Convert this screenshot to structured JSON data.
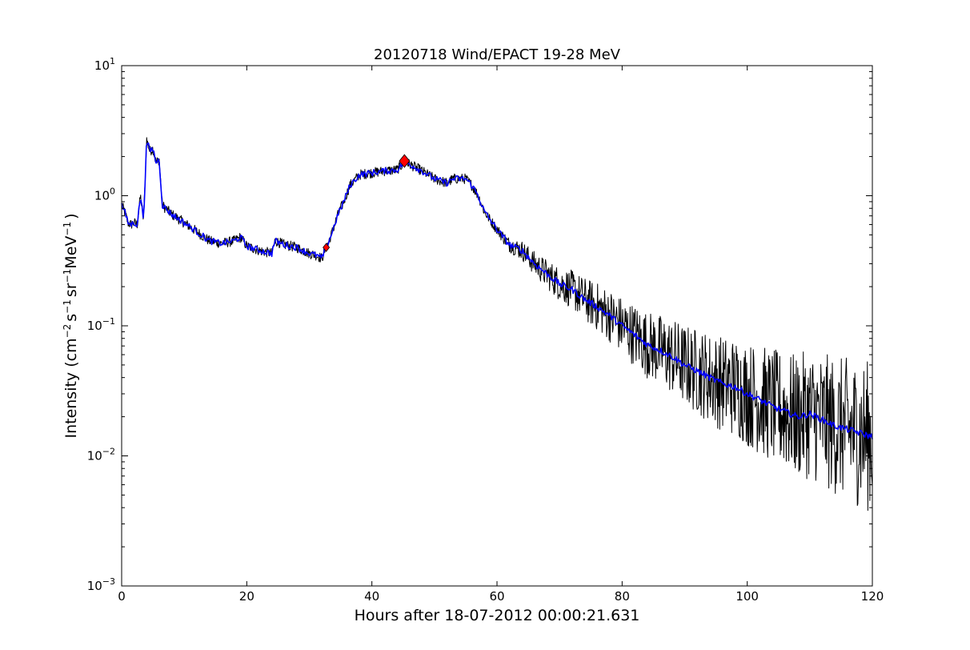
{
  "chart_data": {
    "type": "line",
    "title": "20120718 Wind/EPACT 19-28 MeV",
    "xlabel": "Hours after 18-07-2012 00:00:21.631",
    "ylabel": {
      "prefix": "Intensity (cm",
      "exp1": "−2",
      "s": "s",
      "exp2": "−1",
      "sr": "sr",
      "exp3": "−1",
      "mev": "MeV",
      "exp4": "−1",
      "suffix": ")"
    },
    "xlim": [
      0,
      120
    ],
    "ylim": [
      0.001,
      10
    ],
    "yscale": "log",
    "grid": false,
    "x_ticks": [
      "0",
      "20",
      "40",
      "60",
      "80",
      "100",
      "120"
    ],
    "y_ticks": [
      {
        "base": "10",
        "exp": "−3",
        "value": 0.001
      },
      {
        "base": "10",
        "exp": "−2",
        "value": 0.01
      },
      {
        "base": "10",
        "exp": "−1",
        "value": 0.1
      },
      {
        "base": "10",
        "exp": "0",
        "value": 1
      },
      {
        "base": "10",
        "exp": "1",
        "value": 10
      }
    ],
    "series": [
      {
        "color": "#000000",
        "style": "raw",
        "x": [
          0,
          0.5,
          1,
          1.5,
          2,
          2.5,
          3,
          3.5,
          4,
          4.5,
          5,
          5.5,
          6,
          6.5,
          7,
          8,
          10,
          12,
          14,
          16,
          18,
          19,
          20,
          22,
          24,
          24.5,
          26,
          28,
          30,
          31,
          32,
          32.7,
          33.5,
          34.5,
          35.5,
          36.5,
          38,
          40,
          42,
          44,
          45.2,
          46,
          47,
          48,
          50,
          52,
          53,
          55,
          56,
          57,
          58,
          60,
          62,
          64,
          66,
          68,
          70,
          72,
          74,
          76,
          78,
          80,
          82,
          84,
          86,
          88,
          90,
          92,
          94,
          96,
          98,
          100,
          102,
          104,
          106,
          108,
          110,
          112,
          114,
          116,
          118,
          120
        ],
        "y": [
          0.85,
          0.75,
          0.62,
          0.6,
          0.62,
          0.6,
          1.0,
          0.65,
          2.7,
          2.2,
          2.3,
          1.8,
          1.9,
          0.85,
          0.8,
          0.72,
          0.62,
          0.53,
          0.45,
          0.43,
          0.45,
          0.48,
          0.41,
          0.38,
          0.36,
          0.45,
          0.42,
          0.4,
          0.36,
          0.35,
          0.33,
          0.4,
          0.5,
          0.7,
          0.9,
          1.2,
          1.45,
          1.5,
          1.55,
          1.58,
          1.8,
          1.75,
          1.65,
          1.55,
          1.35,
          1.25,
          1.35,
          1.35,
          1.2,
          1.0,
          0.75,
          0.55,
          0.42,
          0.38,
          0.3,
          0.25,
          0.21,
          0.19,
          0.16,
          0.14,
          0.12,
          0.1,
          0.085,
          0.072,
          0.065,
          0.058,
          0.05,
          0.045,
          0.04,
          0.036,
          0.034,
          0.03,
          0.027,
          0.024,
          0.022,
          0.02,
          0.021,
          0.019,
          0.017,
          0.016,
          0.015,
          0.014
        ]
      },
      {
        "color": "#0000ff",
        "style": "smoothed",
        "x": [
          0,
          0.5,
          1,
          1.5,
          2,
          2.5,
          3,
          3.5,
          4,
          4.5,
          5,
          5.5,
          6,
          6.5,
          7,
          8,
          10,
          12,
          14,
          16,
          18,
          19,
          20,
          22,
          24,
          24.5,
          26,
          28,
          30,
          31,
          32,
          32.7,
          33.5,
          34.5,
          35.5,
          36.5,
          38,
          40,
          42,
          44,
          45.2,
          46,
          47,
          48,
          50,
          52,
          53,
          55,
          56,
          57,
          58,
          60,
          62,
          64,
          66,
          68,
          70,
          72,
          74,
          76,
          78,
          80,
          82,
          84,
          86,
          88,
          90,
          92,
          94,
          96,
          98,
          100,
          102,
          104,
          106,
          108,
          110,
          112,
          114,
          116,
          118,
          120
        ],
        "y": [
          0.85,
          0.75,
          0.62,
          0.6,
          0.62,
          0.6,
          1.0,
          0.65,
          2.7,
          2.2,
          2.3,
          1.8,
          1.9,
          0.85,
          0.8,
          0.72,
          0.62,
          0.53,
          0.45,
          0.43,
          0.45,
          0.48,
          0.41,
          0.38,
          0.36,
          0.45,
          0.42,
          0.4,
          0.36,
          0.35,
          0.33,
          0.4,
          0.5,
          0.7,
          0.9,
          1.2,
          1.45,
          1.5,
          1.55,
          1.58,
          1.8,
          1.75,
          1.65,
          1.55,
          1.35,
          1.25,
          1.35,
          1.35,
          1.2,
          1.0,
          0.75,
          0.55,
          0.42,
          0.38,
          0.3,
          0.25,
          0.21,
          0.19,
          0.16,
          0.14,
          0.12,
          0.1,
          0.085,
          0.072,
          0.065,
          0.058,
          0.05,
          0.045,
          0.04,
          0.036,
          0.034,
          0.03,
          0.027,
          0.024,
          0.022,
          0.02,
          0.021,
          0.019,
          0.017,
          0.016,
          0.015,
          0.014
        ]
      }
    ],
    "markers": [
      {
        "x": 32.7,
        "y": 0.4,
        "shape": "diamond",
        "color": "#ff0000",
        "size": "small"
      },
      {
        "x": 45.2,
        "y": 1.85,
        "shape": "diamond",
        "color": "#ff0000",
        "size": "large"
      }
    ]
  }
}
